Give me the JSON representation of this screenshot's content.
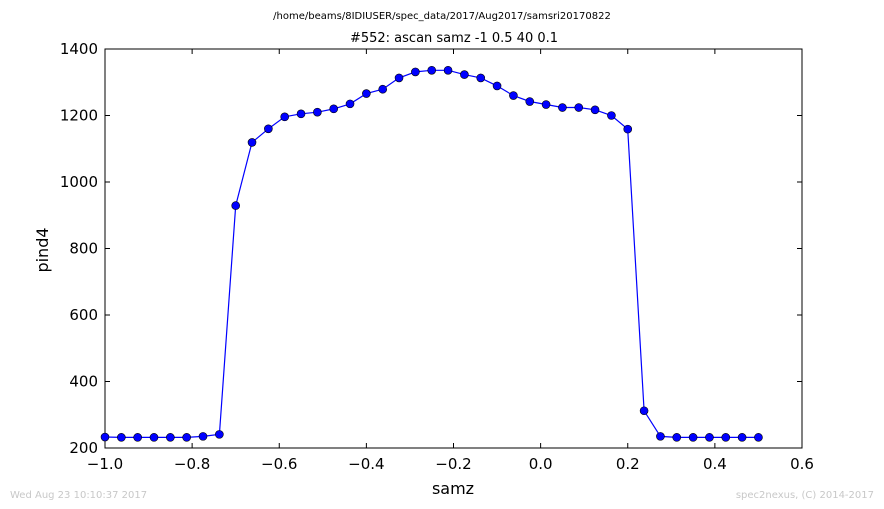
{
  "header": {
    "path": "/home/beams/8IDIUSER/spec_data/2017/Aug2017/samsri20170822"
  },
  "footer": {
    "timestamp": "Wed Aug 23 10:10:37 2017",
    "credit": "spec2nexus, (C) 2014-2017"
  },
  "chart_data": {
    "type": "line",
    "title": "#552: ascan  samz -1 0.5  40 0.1",
    "xlabel": "samz",
    "ylabel": "pind4",
    "xlim": [
      -1.0,
      0.6
    ],
    "ylim": [
      200,
      1400
    ],
    "xticks": [
      "−1.0",
      "−0.8",
      "−0.6",
      "−0.4",
      "−0.2",
      "0.0",
      "0.2",
      "0.4",
      "0.6"
    ],
    "yticks": [
      "200",
      "400",
      "600",
      "800",
      "1000",
      "1200",
      "1400"
    ],
    "grid": false,
    "line_color": "#0000ff",
    "marker": "circle",
    "x": [
      -1.0,
      -0.9625,
      -0.925,
      -0.8875,
      -0.85,
      -0.8125,
      -0.775,
      -0.7375,
      -0.7,
      -0.6625,
      -0.625,
      -0.5875,
      -0.55,
      -0.5125,
      -0.475,
      -0.4375,
      -0.4,
      -0.3625,
      -0.325,
      -0.2875,
      -0.25,
      -0.2125,
      -0.175,
      -0.1375,
      -0.1,
      -0.0625,
      -0.025,
      0.0125,
      0.05,
      0.0875,
      0.125,
      0.1625,
      0.2,
      0.2375,
      0.275,
      0.3125,
      0.35,
      0.3875,
      0.425,
      0.4625,
      0.5
    ],
    "y": [
      233,
      232,
      232,
      232,
      232,
      232,
      235,
      241,
      929,
      1119,
      1160,
      1196,
      1205,
      1210,
      1220,
      1235,
      1266,
      1279,
      1313,
      1331,
      1336,
      1336,
      1323,
      1313,
      1289,
      1260,
      1242,
      1233,
      1224,
      1224,
      1217,
      1200,
      1159,
      312,
      235,
      232,
      232,
      232,
      232,
      232,
      232
    ]
  }
}
